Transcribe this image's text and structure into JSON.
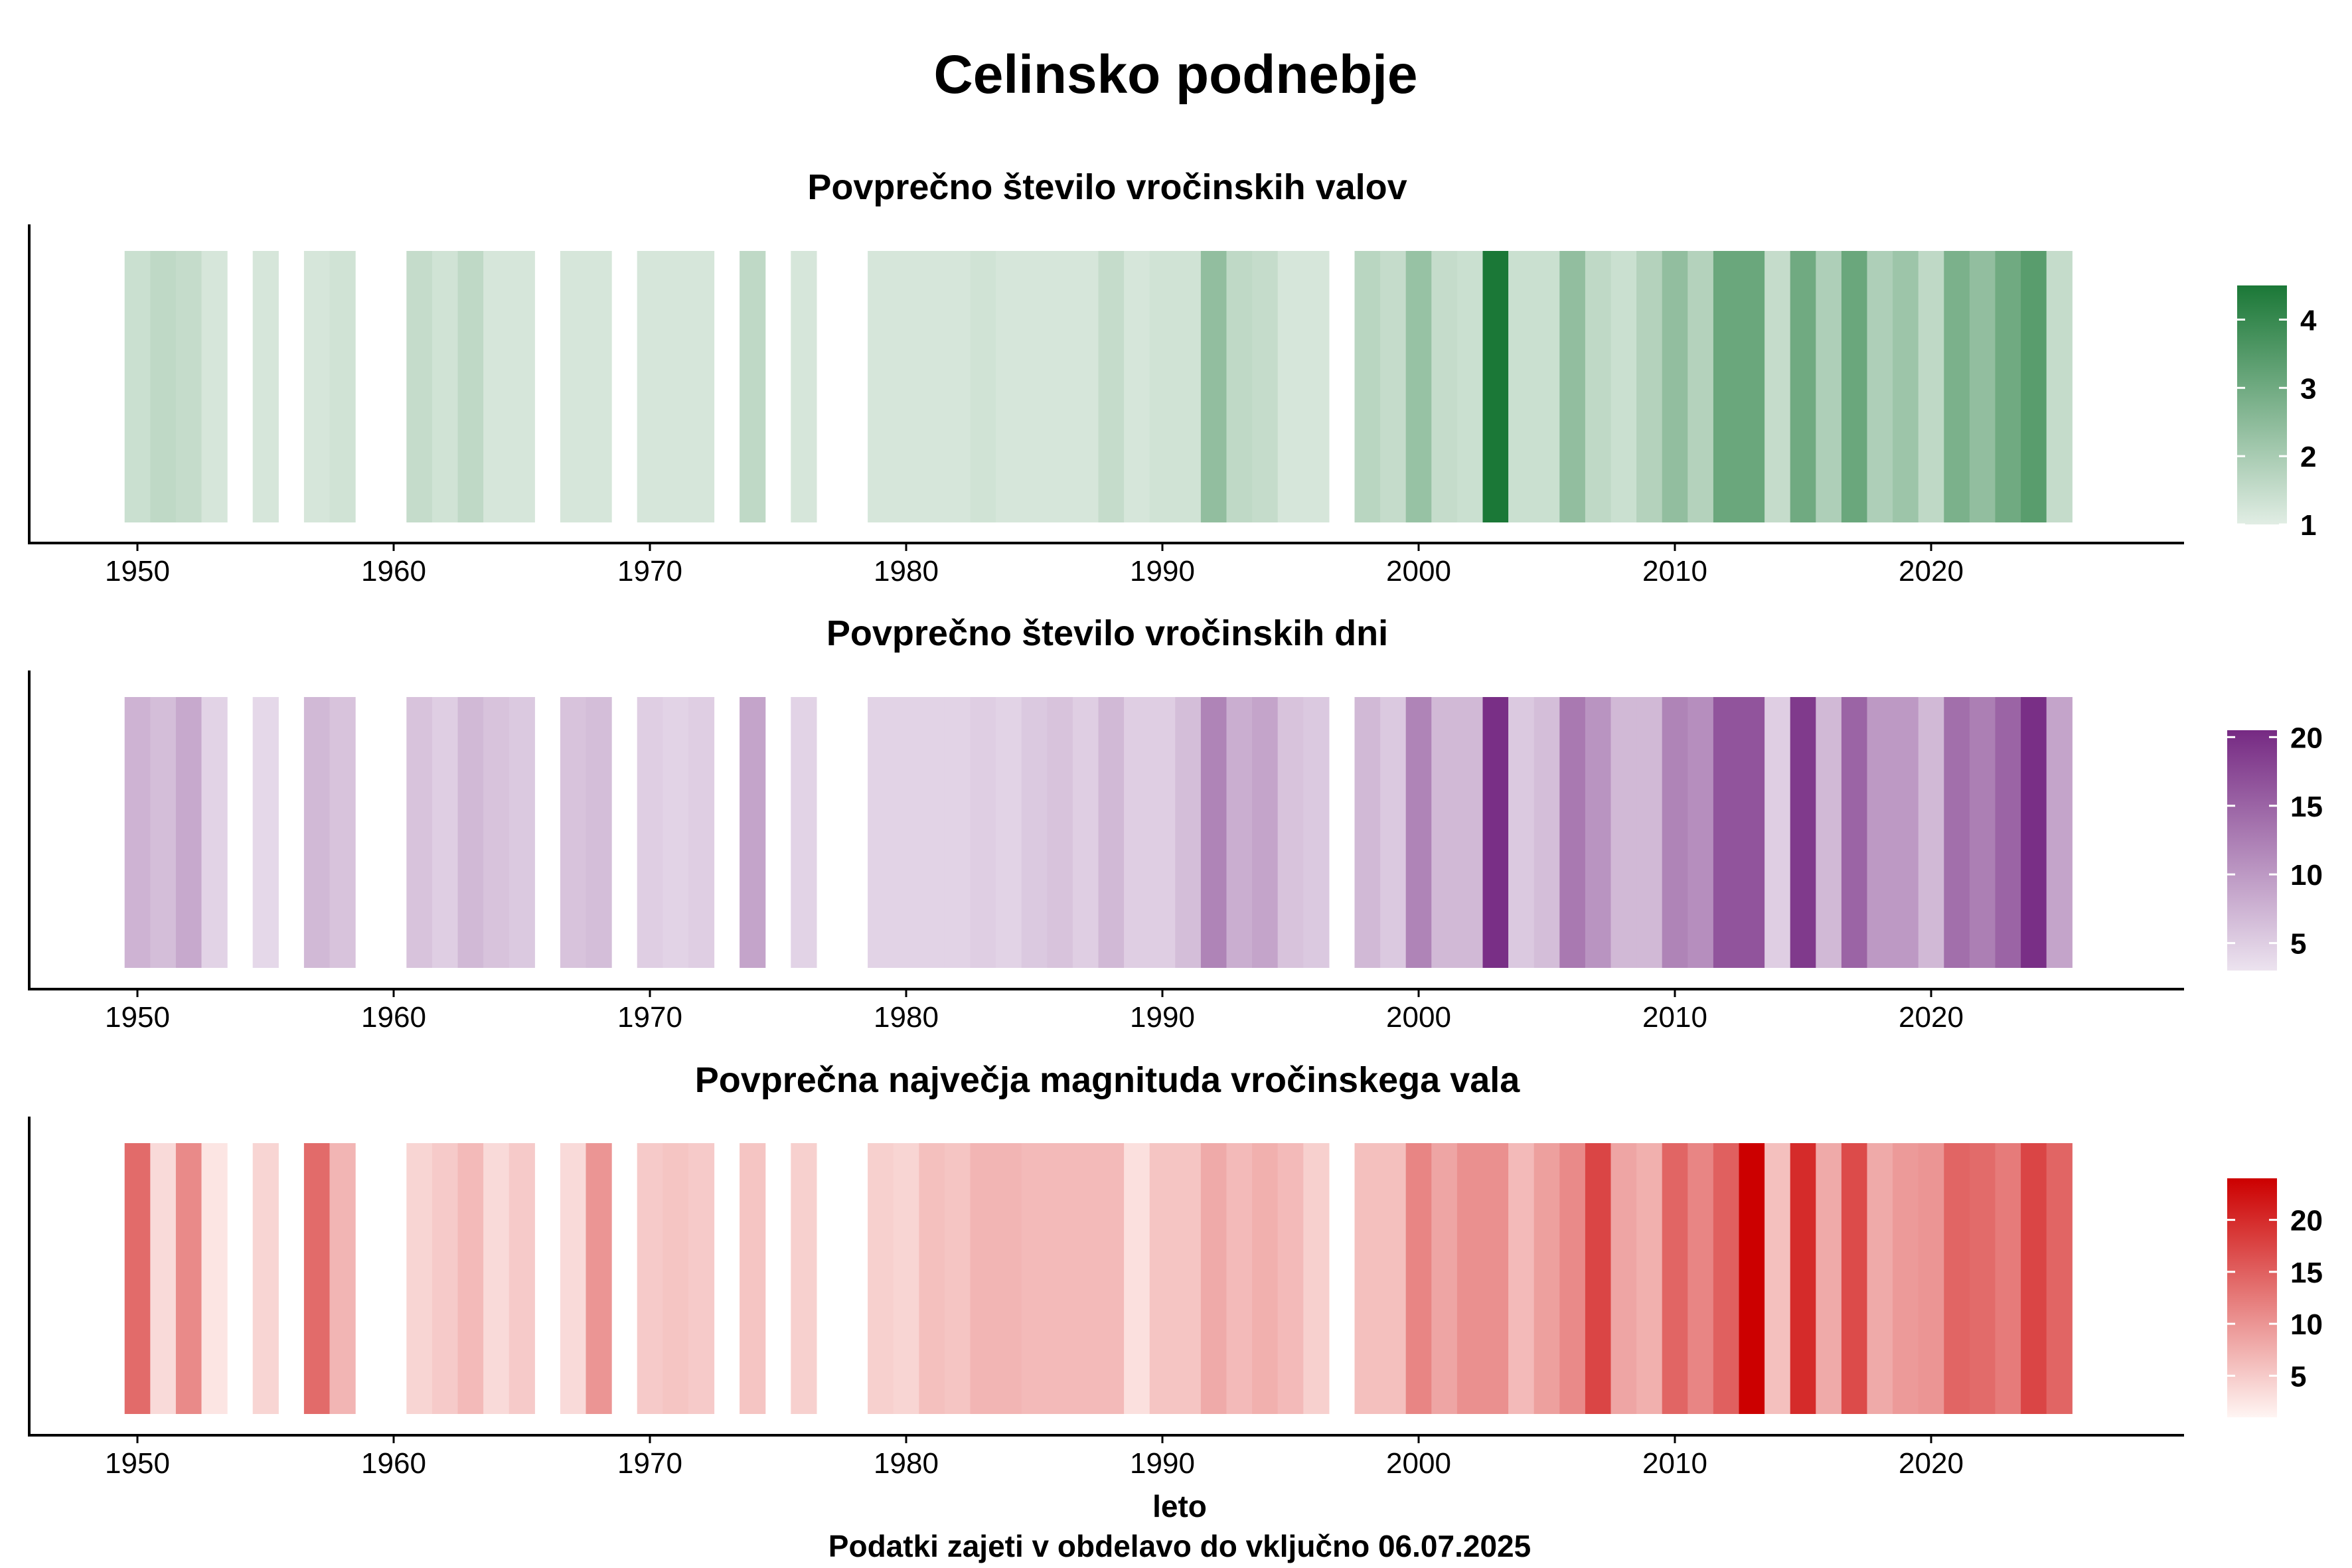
{
  "title": "Celinsko podnebje",
  "xlabel": "leto",
  "caption": "Podatki zajeti v obdelavo do vključno 06.07.2025",
  "chart_data": [
    {
      "type": "heatmap",
      "title": "Povprečno število vročinskih valov",
      "x_ticks": [
        1950,
        1960,
        1970,
        1980,
        1990,
        2000,
        2010,
        2020
      ],
      "xlim": [
        1945.5,
        2028.5
      ],
      "colorbar": {
        "min": 1,
        "max": 4.5,
        "ticks": [
          1,
          2,
          3,
          4
        ],
        "low_color": "#e1ede4",
        "high_color": "#1b7837"
      },
      "data": [
        {
          "year": 1950,
          "value": 1.4
        },
        {
          "year": 1951,
          "value": 1.6
        },
        {
          "year": 1952,
          "value": 1.5
        },
        {
          "year": 1953,
          "value": 1.2
        },
        {
          "year": 1955,
          "value": 1.2
        },
        {
          "year": 1957,
          "value": 1.2
        },
        {
          "year": 1958,
          "value": 1.3
        },
        {
          "year": 1961,
          "value": 1.5
        },
        {
          "year": 1962,
          "value": 1.3
        },
        {
          "year": 1963,
          "value": 1.6
        },
        {
          "year": 1964,
          "value": 1.2
        },
        {
          "year": 1965,
          "value": 1.2
        },
        {
          "year": 1967,
          "value": 1.2
        },
        {
          "year": 1968,
          "value": 1.2
        },
        {
          "year": 1970,
          "value": 1.2
        },
        {
          "year": 1971,
          "value": 1.2
        },
        {
          "year": 1972,
          "value": 1.2
        },
        {
          "year": 1974,
          "value": 1.6
        },
        {
          "year": 1976,
          "value": 1.2
        },
        {
          "year": 1979,
          "value": 1.2
        },
        {
          "year": 1980,
          "value": 1.2
        },
        {
          "year": 1981,
          "value": 1.2
        },
        {
          "year": 1982,
          "value": 1.2
        },
        {
          "year": 1983,
          "value": 1.3
        },
        {
          "year": 1984,
          "value": 1.2
        },
        {
          "year": 1985,
          "value": 1.2
        },
        {
          "year": 1986,
          "value": 1.2
        },
        {
          "year": 1987,
          "value": 1.2
        },
        {
          "year": 1988,
          "value": 1.5
        },
        {
          "year": 1989,
          "value": 1.2
        },
        {
          "year": 1990,
          "value": 1.3
        },
        {
          "year": 1991,
          "value": 1.3
        },
        {
          "year": 1992,
          "value": 2.4
        },
        {
          "year": 1993,
          "value": 1.6
        },
        {
          "year": 1994,
          "value": 1.5
        },
        {
          "year": 1995,
          "value": 1.2
        },
        {
          "year": 1996,
          "value": 1.2
        },
        {
          "year": 1998,
          "value": 1.7
        },
        {
          "year": 1999,
          "value": 1.5
        },
        {
          "year": 2000,
          "value": 2.3
        },
        {
          "year": 2001,
          "value": 1.5
        },
        {
          "year": 2002,
          "value": 1.4
        },
        {
          "year": 2003,
          "value": 4.5
        },
        {
          "year": 2004,
          "value": 1.4
        },
        {
          "year": 2005,
          "value": 1.4
        },
        {
          "year": 2006,
          "value": 2.4
        },
        {
          "year": 2007,
          "value": 1.6
        },
        {
          "year": 2008,
          "value": 1.4
        },
        {
          "year": 2009,
          "value": 1.8
        },
        {
          "year": 2010,
          "value": 2.4
        },
        {
          "year": 2011,
          "value": 1.8
        },
        {
          "year": 2012,
          "value": 3.1
        },
        {
          "year": 2013,
          "value": 3.1
        },
        {
          "year": 2014,
          "value": 1.5
        },
        {
          "year": 2015,
          "value": 3.0
        },
        {
          "year": 2016,
          "value": 1.9
        },
        {
          "year": 2017,
          "value": 3.1
        },
        {
          "year": 2018,
          "value": 1.9
        },
        {
          "year": 2019,
          "value": 2.2
        },
        {
          "year": 2020,
          "value": 1.6
        },
        {
          "year": 2021,
          "value": 2.8
        },
        {
          "year": 2022,
          "value": 2.4
        },
        {
          "year": 2023,
          "value": 3.0
        },
        {
          "year": 2024,
          "value": 3.4
        },
        {
          "year": 2025,
          "value": 1.5
        }
      ]
    },
    {
      "type": "heatmap",
      "title": "Povprečno število vročinskih dni",
      "x_ticks": [
        1950,
        1960,
        1970,
        1980,
        1990,
        2000,
        2010,
        2020
      ],
      "xlim": [
        1945.5,
        2028.5
      ],
      "colorbar": {
        "min": 3,
        "max": 20.5,
        "ticks": [
          5,
          10,
          15,
          20
        ],
        "low_color": "#ece3ef",
        "high_color": "#762a83"
      },
      "data": [
        {
          "year": 1950,
          "value": 7.5
        },
        {
          "year": 1951,
          "value": 6.5
        },
        {
          "year": 1952,
          "value": 8.5
        },
        {
          "year": 1953,
          "value": 4.5
        },
        {
          "year": 1955,
          "value": 4.0
        },
        {
          "year": 1957,
          "value": 7.0
        },
        {
          "year": 1958,
          "value": 6.0
        },
        {
          "year": 1961,
          "value": 6.0
        },
        {
          "year": 1962,
          "value": 5.0
        },
        {
          "year": 1963,
          "value": 7.0
        },
        {
          "year": 1964,
          "value": 6.0
        },
        {
          "year": 1965,
          "value": 5.5
        },
        {
          "year": 1967,
          "value": 6.0
        },
        {
          "year": 1968,
          "value": 6.5
        },
        {
          "year": 1970,
          "value": 5.0
        },
        {
          "year": 1971,
          "value": 4.5
        },
        {
          "year": 1972,
          "value": 5.0
        },
        {
          "year": 1974,
          "value": 9.0
        },
        {
          "year": 1976,
          "value": 4.5
        },
        {
          "year": 1979,
          "value": 4.5
        },
        {
          "year": 1980,
          "value": 4.5
        },
        {
          "year": 1981,
          "value": 4.5
        },
        {
          "year": 1982,
          "value": 4.5
        },
        {
          "year": 1983,
          "value": 5.0
        },
        {
          "year": 1984,
          "value": 4.5
        },
        {
          "year": 1985,
          "value": 5.5
        },
        {
          "year": 1986,
          "value": 6.0
        },
        {
          "year": 1987,
          "value": 5.0
        },
        {
          "year": 1988,
          "value": 7.0
        },
        {
          "year": 1989,
          "value": 5.0
        },
        {
          "year": 1990,
          "value": 5.0
        },
        {
          "year": 1991,
          "value": 6.5
        },
        {
          "year": 1992,
          "value": 12.0
        },
        {
          "year": 1993,
          "value": 8.0
        },
        {
          "year": 1994,
          "value": 9.0
        },
        {
          "year": 1995,
          "value": 6.0
        },
        {
          "year": 1996,
          "value": 5.5
        },
        {
          "year": 1998,
          "value": 7.0
        },
        {
          "year": 1999,
          "value": 5.5
        },
        {
          "year": 2000,
          "value": 12.0
        },
        {
          "year": 2001,
          "value": 7.0
        },
        {
          "year": 2002,
          "value": 7.0
        },
        {
          "year": 2003,
          "value": 20.0
        },
        {
          "year": 2004,
          "value": 5.5
        },
        {
          "year": 2005,
          "value": 6.5
        },
        {
          "year": 2006,
          "value": 13.0
        },
        {
          "year": 2007,
          "value": 10.5
        },
        {
          "year": 2008,
          "value": 7.0
        },
        {
          "year": 2009,
          "value": 7.0
        },
        {
          "year": 2010,
          "value": 12.0
        },
        {
          "year": 2011,
          "value": 11.0
        },
        {
          "year": 2012,
          "value": 16.5
        },
        {
          "year": 2013,
          "value": 16.5
        },
        {
          "year": 2014,
          "value": 5.0
        },
        {
          "year": 2015,
          "value": 19.0
        },
        {
          "year": 2016,
          "value": 7.0
        },
        {
          "year": 2017,
          "value": 15.0
        },
        {
          "year": 2018,
          "value": 10.0
        },
        {
          "year": 2019,
          "value": 10.0
        },
        {
          "year": 2020,
          "value": 7.0
        },
        {
          "year": 2021,
          "value": 14.0
        },
        {
          "year": 2022,
          "value": 12.5
        },
        {
          "year": 2023,
          "value": 15.0
        },
        {
          "year": 2024,
          "value": 20.0
        },
        {
          "year": 2025,
          "value": 9.0
        }
      ]
    },
    {
      "type": "heatmap",
      "title": "Povprečna največja magnituda vročinskega vala",
      "x_ticks": [
        1950,
        1960,
        1970,
        1980,
        1990,
        2000,
        2010,
        2020
      ],
      "xlim": [
        1945.5,
        2028.5
      ],
      "colorbar": {
        "min": 1,
        "max": 24,
        "ticks": [
          5,
          10,
          15,
          20
        ],
        "low_color": "#fff5f3",
        "high_color": "#cc0000"
      },
      "data": [
        {
          "year": 1950,
          "value": 14.0
        },
        {
          "year": 1951,
          "value": 3.5
        },
        {
          "year": 1952,
          "value": 11.0
        },
        {
          "year": 1953,
          "value": 2.5
        },
        {
          "year": 1955,
          "value": 4.0
        },
        {
          "year": 1957,
          "value": 14.0
        },
        {
          "year": 1958,
          "value": 7.0
        },
        {
          "year": 1961,
          "value": 4.0
        },
        {
          "year": 1962,
          "value": 5.0
        },
        {
          "year": 1963,
          "value": 6.5
        },
        {
          "year": 1964,
          "value": 3.5
        },
        {
          "year": 1965,
          "value": 5.0
        },
        {
          "year": 1967,
          "value": 3.5
        },
        {
          "year": 1968,
          "value": 10.0
        },
        {
          "year": 1970,
          "value": 5.0
        },
        {
          "year": 1971,
          "value": 5.5
        },
        {
          "year": 1972,
          "value": 5.0
        },
        {
          "year": 1974,
          "value": 5.5
        },
        {
          "year": 1976,
          "value": 4.5
        },
        {
          "year": 1979,
          "value": 4.5
        },
        {
          "year": 1980,
          "value": 4.0
        },
        {
          "year": 1981,
          "value": 6.0
        },
        {
          "year": 1982,
          "value": 5.5
        },
        {
          "year": 1983,
          "value": 7.0
        },
        {
          "year": 1984,
          "value": 7.0
        },
        {
          "year": 1985,
          "value": 6.5
        },
        {
          "year": 1986,
          "value": 6.5
        },
        {
          "year": 1987,
          "value": 6.5
        },
        {
          "year": 1988,
          "value": 6.5
        },
        {
          "year": 1989,
          "value": 3.0
        },
        {
          "year": 1990,
          "value": 5.5
        },
        {
          "year": 1991,
          "value": 5.5
        },
        {
          "year": 1992,
          "value": 8.0
        },
        {
          "year": 1993,
          "value": 6.5
        },
        {
          "year": 1994,
          "value": 7.5
        },
        {
          "year": 1995,
          "value": 6.5
        },
        {
          "year": 1996,
          "value": 4.5
        },
        {
          "year": 1998,
          "value": 6.0
        },
        {
          "year": 1999,
          "value": 6.0
        },
        {
          "year": 2000,
          "value": 11.5
        },
        {
          "year": 2001,
          "value": 8.5
        },
        {
          "year": 2002,
          "value": 10.5
        },
        {
          "year": 2003,
          "value": 10.5
        },
        {
          "year": 2004,
          "value": 6.5
        },
        {
          "year": 2005,
          "value": 9.0
        },
        {
          "year": 2006,
          "value": 11.0
        },
        {
          "year": 2007,
          "value": 17.5
        },
        {
          "year": 2008,
          "value": 8.5
        },
        {
          "year": 2009,
          "value": 7.5
        },
        {
          "year": 2010,
          "value": 14.5
        },
        {
          "year": 2011,
          "value": 11.5
        },
        {
          "year": 2012,
          "value": 15.0
        },
        {
          "year": 2013,
          "value": 24.0
        },
        {
          "year": 2014,
          "value": 6.0
        },
        {
          "year": 2015,
          "value": 20.0
        },
        {
          "year": 2016,
          "value": 8.0
        },
        {
          "year": 2017,
          "value": 17.0
        },
        {
          "year": 2018,
          "value": 8.0
        },
        {
          "year": 2019,
          "value": 9.5
        },
        {
          "year": 2020,
          "value": 10.0
        },
        {
          "year": 2021,
          "value": 14.5
        },
        {
          "year": 2022,
          "value": 14.0
        },
        {
          "year": 2023,
          "value": 12.5
        },
        {
          "year": 2024,
          "value": 17.5
        },
        {
          "year": 2025,
          "value": 14.5
        }
      ]
    }
  ]
}
